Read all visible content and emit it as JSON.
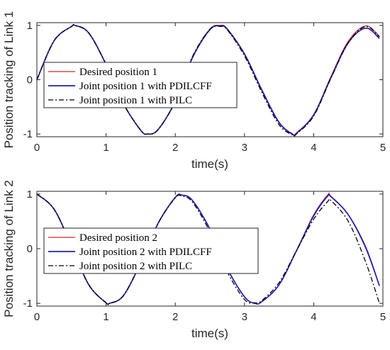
{
  "chart_data": [
    {
      "type": "line",
      "ylabel": "Position tracking of Link 1",
      "xlabel": "time(s)",
      "xlim": [
        0,
        5
      ],
      "ylim": [
        -1.05,
        1.05
      ],
      "xticks": [
        "0",
        "1",
        "2",
        "3",
        "4",
        "5"
      ],
      "xtick_values": [
        0,
        1,
        2,
        3,
        4,
        5
      ],
      "yticks": [
        "-1",
        "0",
        "1"
      ],
      "ytick_values": [
        -1,
        0,
        1
      ],
      "grid": false,
      "legend_position": "middle-left",
      "x": [
        0,
        0.25,
        0.5,
        0.55,
        0.75,
        1,
        1.25,
        1.5,
        1.6,
        1.75,
        2,
        2.25,
        2.5,
        2.65,
        2.75,
        3,
        3.25,
        3.5,
        3.7,
        3.75,
        4,
        4.25,
        4.5,
        4.75,
        4.95
      ],
      "series": [
        {
          "name": "Desired position 1",
          "color": "#d62728",
          "dash": "",
          "values": [
            0.0,
            0.72,
            0.98,
            1.0,
            0.86,
            0.28,
            -0.44,
            -0.93,
            -1.0,
            -0.92,
            -0.4,
            0.42,
            0.93,
            1.0,
            0.94,
            0.48,
            -0.18,
            -0.78,
            -1.0,
            -0.98,
            -0.64,
            0.06,
            0.71,
            0.99,
            0.8
          ]
        },
        {
          "name": "Joint position 1 with PDILCFF",
          "color": "#1f1fb4",
          "dash": "",
          "values": [
            0.0,
            0.72,
            0.98,
            1.0,
            0.86,
            0.28,
            -0.44,
            -0.93,
            -1.0,
            -0.92,
            -0.4,
            0.41,
            0.92,
            0.99,
            0.93,
            0.47,
            -0.19,
            -0.79,
            -1.01,
            -0.99,
            -0.65,
            0.04,
            0.68,
            0.95,
            0.76
          ]
        },
        {
          "name": "Joint position 1 with PILC",
          "color": "#000000",
          "dash": "7,3,2,3",
          "values": [
            0.0,
            0.72,
            0.98,
            1.0,
            0.86,
            0.28,
            -0.44,
            -0.93,
            -1.0,
            -0.92,
            -0.4,
            0.43,
            0.93,
            0.98,
            0.92,
            0.44,
            -0.23,
            -0.83,
            -1.02,
            -1.0,
            -0.67,
            0.03,
            0.68,
            0.98,
            0.79
          ]
        }
      ]
    },
    {
      "type": "line",
      "ylabel": "Position tracking of Link 2",
      "xlabel": "time(s)",
      "xlim": [
        0,
        5
      ],
      "ylim": [
        -1.05,
        1.05
      ],
      "xticks": [
        "0",
        "1",
        "2",
        "3",
        "4",
        "5"
      ],
      "xtick_values": [
        0,
        1,
        2,
        3,
        4,
        5
      ],
      "yticks": [
        "-1",
        "0",
        "1"
      ],
      "ytick_values": [
        -1,
        0,
        1
      ],
      "grid": false,
      "legend_position": "bottom-left",
      "x": [
        0,
        0.25,
        0.5,
        0.75,
        1,
        1.05,
        1.25,
        1.5,
        1.75,
        2,
        2.1,
        2.25,
        2.5,
        2.75,
        3,
        3.15,
        3.25,
        3.5,
        3.75,
        4,
        4.2,
        4.25,
        4.5,
        4.75,
        4.95
      ],
      "series": [
        {
          "name": "Desired position 2",
          "color": "#d62728",
          "dash": "",
          "values": [
            1.0,
            0.72,
            0.05,
            -0.66,
            -0.99,
            -1.0,
            -0.86,
            -0.26,
            0.46,
            0.94,
            0.98,
            0.88,
            0.36,
            -0.36,
            -0.88,
            -1.0,
            -0.97,
            -0.66,
            -0.04,
            0.62,
            0.98,
            0.96,
            0.62,
            0.04,
            -0.68
          ]
        },
        {
          "name": "Joint position 2 with PDILCFF",
          "color": "#1f1fb4",
          "dash": "",
          "values": [
            1.0,
            0.72,
            0.05,
            -0.66,
            -0.99,
            -1.0,
            -0.86,
            -0.26,
            0.46,
            0.94,
            0.98,
            0.88,
            0.36,
            -0.36,
            -0.88,
            -1.0,
            -0.97,
            -0.66,
            -0.04,
            0.6,
            0.96,
            0.95,
            0.62,
            0.02,
            -0.68
          ]
        },
        {
          "name": "Joint position 2 with PILC",
          "color": "#000000",
          "dash": "7,3,2,3",
          "values": [
            1.0,
            0.72,
            0.05,
            -0.66,
            -0.99,
            -1.0,
            -0.86,
            -0.26,
            0.46,
            0.93,
            0.96,
            0.85,
            0.31,
            -0.42,
            -0.93,
            -0.99,
            -0.95,
            -0.62,
            -0.04,
            0.54,
            0.86,
            0.88,
            0.5,
            -0.24,
            -1.0
          ]
        }
      ]
    }
  ]
}
